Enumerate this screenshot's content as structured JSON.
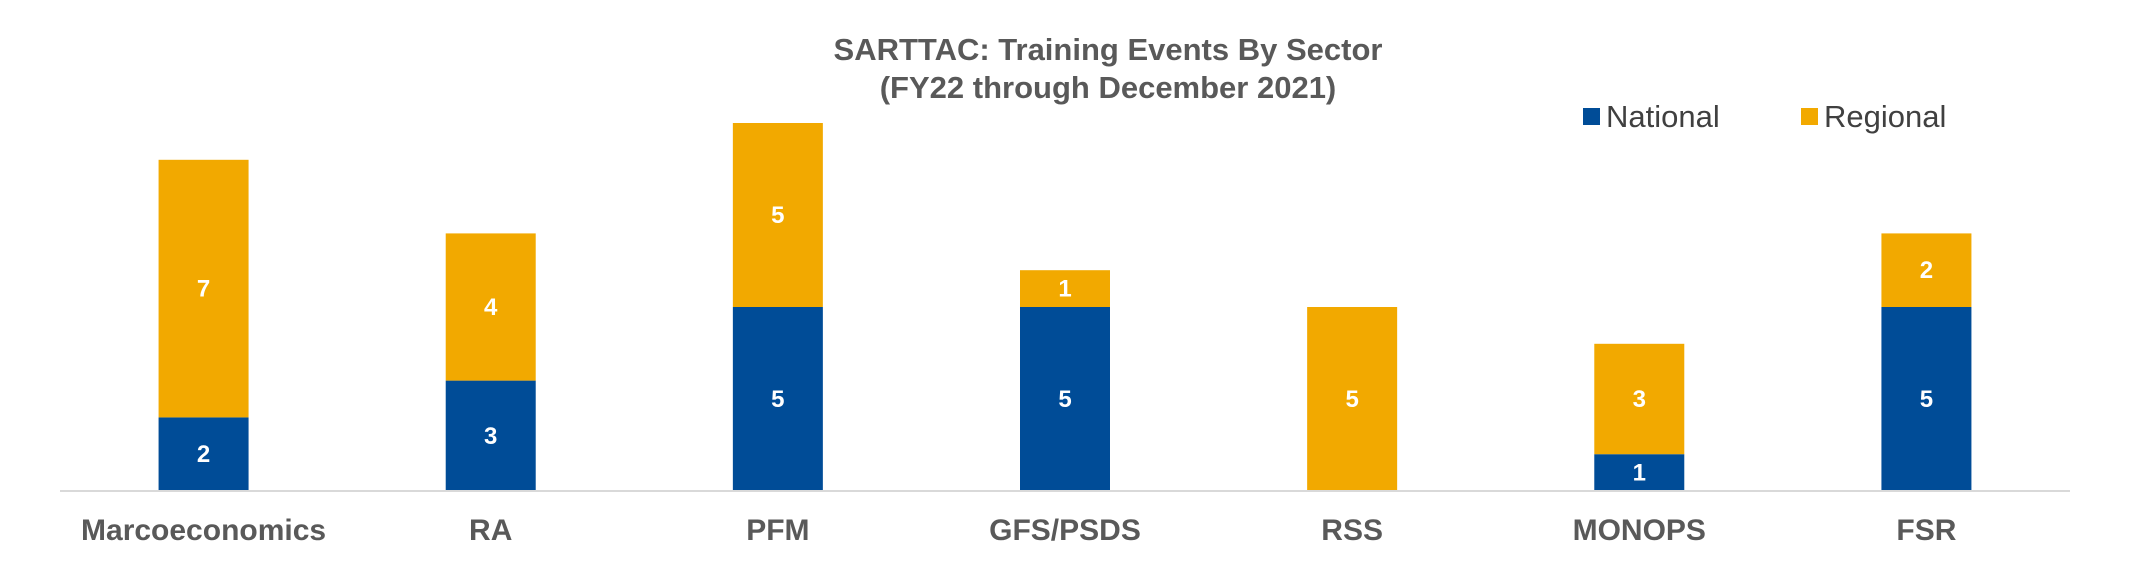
{
  "chart_data": {
    "type": "bar",
    "stacked": true,
    "title": [
      "SARTTAC: Training Events By Sector",
      "(FY22 through December 2021)"
    ],
    "categories": [
      "Marcoeconomics",
      "RA",
      "PFM",
      "GFS/PSDS",
      "RSS",
      "MONOPS",
      "FSR"
    ],
    "series": [
      {
        "name": "National",
        "values": [
          2,
          3,
          5,
          5,
          0,
          1,
          5
        ],
        "color": "#004C97"
      },
      {
        "name": "Regional",
        "values": [
          7,
          4,
          5,
          1,
          5,
          3,
          2
        ],
        "color": "#F2A900"
      }
    ],
    "ylim": [
      0,
      10
    ],
    "grid": false,
    "legend": "top-right",
    "axis_color": "#D9D9D9"
  }
}
